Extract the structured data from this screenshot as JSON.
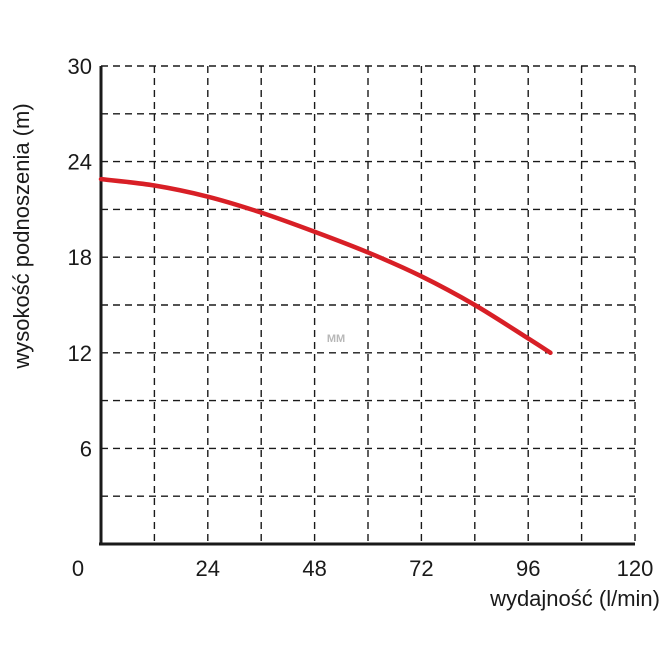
{
  "chart_data": {
    "type": "line",
    "xlabel": "wydajność (l/min)",
    "ylabel": "wysokość podnoszenia (m)",
    "xlim": [
      0,
      120
    ],
    "ylim": [
      0,
      30
    ],
    "x_ticks": [
      "0",
      "24",
      "48",
      "72",
      "96",
      "120"
    ],
    "y_ticks": [
      "6",
      "12",
      "18",
      "24",
      "30"
    ],
    "grid": true,
    "grid_style": "dashed",
    "watermark": "MM",
    "colors": {
      "series": "#d81f26",
      "axis": "#1a1a1a",
      "grid": "#1a1a1a"
    },
    "series": [
      {
        "x": [
          0,
          12,
          24,
          36,
          48,
          60,
          72,
          84,
          96,
          101
        ],
        "y": [
          22.9,
          22.5,
          21.8,
          20.8,
          19.6,
          18.3,
          16.8,
          15.0,
          12.9,
          12.0
        ]
      }
    ]
  }
}
